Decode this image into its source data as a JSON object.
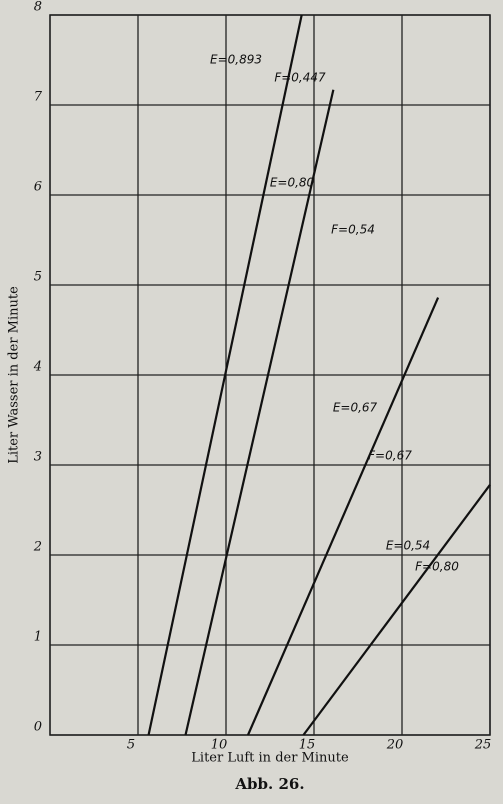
{
  "chart_data": {
    "type": "line",
    "title": "Abb. 26.",
    "x_label": "Liter Luft in der Minute",
    "y_label": "Liter Wasser in der Minute",
    "xlim": [
      0,
      25
    ],
    "ylim": [
      0,
      8
    ],
    "xticks": [
      5,
      10,
      15,
      20,
      25
    ],
    "yticks": [
      0,
      1,
      2,
      3,
      4,
      5,
      6,
      7,
      8
    ],
    "grid": true,
    "series": [
      {
        "color": "#111111",
        "x": [
          5.6,
          14.3
        ],
        "values": [
          0,
          8
        ]
      },
      {
        "color": "#111111",
        "x": [
          7.7,
          16.1
        ],
        "values": [
          0,
          7.17
        ]
      },
      {
        "color": "#111111",
        "x": [
          11.25,
          22.05
        ],
        "values": [
          0,
          4.86
        ]
      },
      {
        "color": "#111111",
        "x": [
          14.4,
          25
        ],
        "values": [
          0,
          2.78
        ]
      }
    ],
    "annotations": [
      "E=0,893",
      "F=0,447",
      "E=0,80",
      "F=0,54",
      "E=0,67",
      "F=0,67",
      "E=0,54",
      "F=0,80"
    ]
  }
}
